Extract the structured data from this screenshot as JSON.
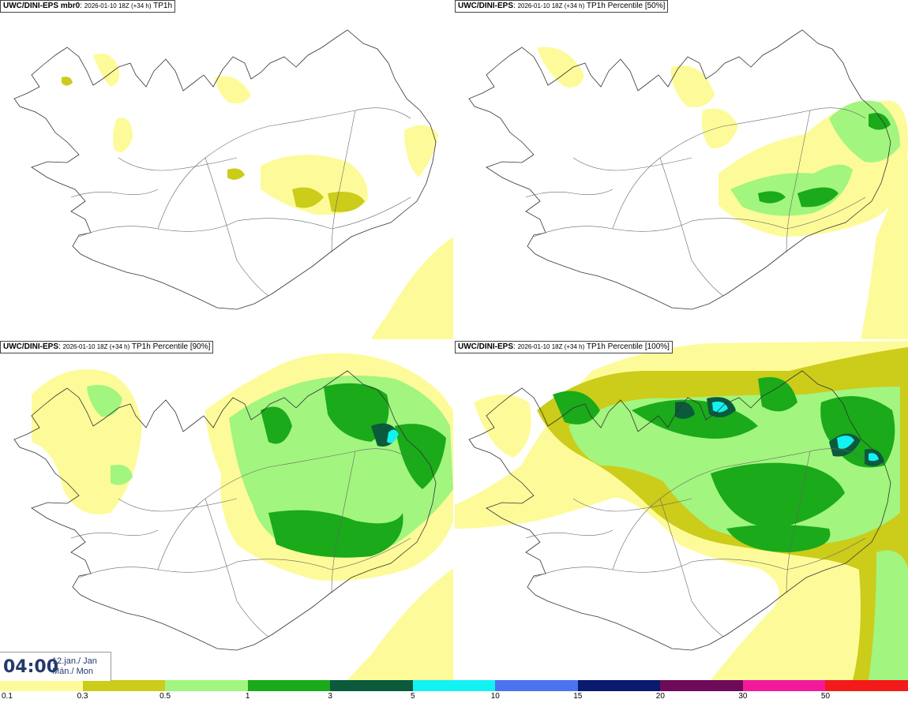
{
  "panels": [
    {
      "model": "UWC/DINI-EPS mbr0",
      "run": "2026-01-10 18Z (+34 h)",
      "field": "TP1h",
      "intensity": 1
    },
    {
      "model": "UWC/DINI-EPS",
      "run": "2026-01-10 18Z (+34 h)",
      "field": "TP1h Percentile [50%]",
      "intensity": 2
    },
    {
      "model": "UWC/DINI-EPS",
      "run": "2026-01-10 18Z (+34 h)",
      "field": "TP1h Percentile [90%]",
      "intensity": 3
    },
    {
      "model": "UWC/DINI-EPS",
      "run": "2026-01-10 18Z (+34 h)",
      "field": "TP1h Percentile [100%]",
      "intensity": 4
    }
  ],
  "valid_time": {
    "hour": "04:00",
    "date": "12.jan./ Jan",
    "weekday": "Mán./ Mon"
  },
  "legend": {
    "colors": [
      "#fdfb99",
      "#cccc1a",
      "#a2f57f",
      "#1aaa1a",
      "#0b5a3c",
      "#12f2f2",
      "#4a73f0",
      "#0a1a6e",
      "#6e0a5a",
      "#f21a9a",
      "#f21a1a"
    ],
    "labels": [
      "0.1",
      "0.3",
      "0.5",
      "1",
      "3",
      "5",
      "10",
      "15",
      "20",
      "30",
      "50"
    ]
  }
}
